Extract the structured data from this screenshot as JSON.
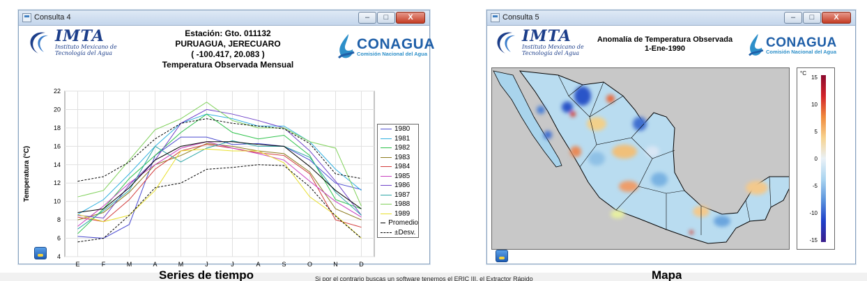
{
  "left": {
    "window_title": "Consulta 4",
    "header_lines": [
      "Estación: Gto. 011132",
      "PURUAGUA, JERECUARO",
      "( -100.417,  20.083 )",
      "Temperatura Observada Mensual"
    ],
    "mta": {
      "big": "IMTA",
      "sub1": "Instituto Mexicano de",
      "sub2": "Tecnología del Agua"
    },
    "conagua": {
      "big": "CONAGUA",
      "sub": "Comisión Nacional del Agua"
    }
  },
  "right": {
    "window_title": "Consulta 5",
    "header_lines": [
      "Anomalía de Temperatura Observada",
      "1-Ene-1990"
    ],
    "mta": {
      "big": "IMTA",
      "sub1": "Instituto Mexicano de",
      "sub2": "Tecnología del Agua"
    },
    "conagua": {
      "big": "CONAGUA",
      "sub": "Comisión Nacional del Agua"
    },
    "colorbar": {
      "unit": "°C",
      "ticks": [
        "15",
        "10",
        "5",
        "0",
        "-5",
        "-10",
        "-15"
      ]
    }
  },
  "window_buttons": {
    "minimize": "–",
    "maximize": "□",
    "close": "X"
  },
  "captions": {
    "left": "Series de tiempo",
    "center": "Si por el contrario buscas un software tenemos el  ERIC III, el Extractor Rápido",
    "right": "Mapa"
  },
  "chart_data": {
    "type": "line",
    "title": "Temperatura Observada Mensual",
    "ylabel": "Temperatura (°C)",
    "xlabel": "",
    "categories": [
      "E",
      "F",
      "M",
      "A",
      "M",
      "J",
      "J",
      "A",
      "S",
      "O",
      "N",
      "D"
    ],
    "ylim": [
      4,
      22
    ],
    "yticks": [
      4,
      6,
      8,
      10,
      12,
      14,
      16,
      18,
      20,
      22
    ],
    "grid": true,
    "legend_position": "right",
    "series": [
      {
        "name": "1980",
        "color": "#4b4bd0",
        "dash": false,
        "values": [
          6.2,
          6.0,
          7.5,
          15.0,
          17.0,
          17.0,
          16.2,
          16.3,
          16.0,
          14.5,
          12.0,
          11.3
        ]
      },
      {
        "name": "1981",
        "color": "#30b0e0",
        "dash": false,
        "values": [
          8.6,
          10.2,
          13.0,
          16.0,
          18.5,
          19.5,
          19.0,
          18.2,
          18.2,
          16.5,
          13.5,
          11.2
        ]
      },
      {
        "name": "1982",
        "color": "#2dc24a",
        "dash": false,
        "values": [
          6.5,
          9.2,
          12.5,
          15.0,
          17.5,
          19.5,
          17.5,
          16.8,
          17.2,
          15.0,
          10.2,
          9.2
        ]
      },
      {
        "name": "1983",
        "color": "#8c7a1e",
        "dash": false,
        "values": [
          8.0,
          8.8,
          11.0,
          14.0,
          15.0,
          16.3,
          16.0,
          15.5,
          15.2,
          13.2,
          9.2,
          8.0
        ]
      },
      {
        "name": "1984",
        "color": "#d23a3a",
        "dash": false,
        "values": [
          8.3,
          7.8,
          10.2,
          13.5,
          15.5,
          16.2,
          15.8,
          15.3,
          15.0,
          13.0,
          8.0,
          7.2
        ]
      },
      {
        "name": "1985",
        "color": "#c83fbf",
        "dash": false,
        "values": [
          7.3,
          9.5,
          12.0,
          14.0,
          15.8,
          16.5,
          15.8,
          15.2,
          14.5,
          12.2,
          10.0,
          8.3
        ]
      },
      {
        "name": "1986",
        "color": "#6e41c9",
        "dash": false,
        "values": [
          8.5,
          8.2,
          11.8,
          14.5,
          18.5,
          20.0,
          19.5,
          18.8,
          18.0,
          15.5,
          12.2,
          8.5
        ]
      },
      {
        "name": "1987",
        "color": "#2aa6a6",
        "dash": false,
        "values": [
          7.0,
          9.0,
          11.2,
          16.0,
          14.3,
          15.8,
          16.6,
          16.0,
          16.0,
          14.8,
          11.0,
          8.5
        ]
      },
      {
        "name": "1988",
        "color": "#7fd15a",
        "dash": false,
        "values": [
          10.5,
          11.2,
          14.5,
          17.8,
          19.0,
          20.8,
          18.8,
          18.0,
          18.0,
          16.5,
          15.8,
          9.5
        ]
      },
      {
        "name": "1989",
        "color": "#e8df2a",
        "dash": false,
        "values": [
          8.6,
          7.8,
          8.5,
          11.2,
          15.5,
          15.7,
          15.5,
          15.5,
          14.2,
          10.5,
          8.5,
          6.0
        ]
      },
      {
        "name": "Promedio",
        "color": "#000000",
        "dash": false,
        "values": [
          8.8,
          9.2,
          11.5,
          14.5,
          16.0,
          16.5,
          16.5,
          16.2,
          16.0,
          13.8,
          11.2,
          9.2
        ]
      },
      {
        "name": "±Desv.",
        "color": "#000000",
        "dash": true,
        "values": [
          12.2,
          12.7,
          14.3,
          16.8,
          18.5,
          19.0,
          18.5,
          18.2,
          17.9,
          16.3,
          13.0,
          12.5
        ]
      },
      {
        "name": "",
        "color": "#000000",
        "dash": true,
        "values": [
          5.6,
          6.0,
          8.5,
          11.5,
          12.0,
          13.5,
          13.7,
          14.0,
          13.9,
          11.6,
          8.4,
          6.0
        ]
      }
    ]
  }
}
